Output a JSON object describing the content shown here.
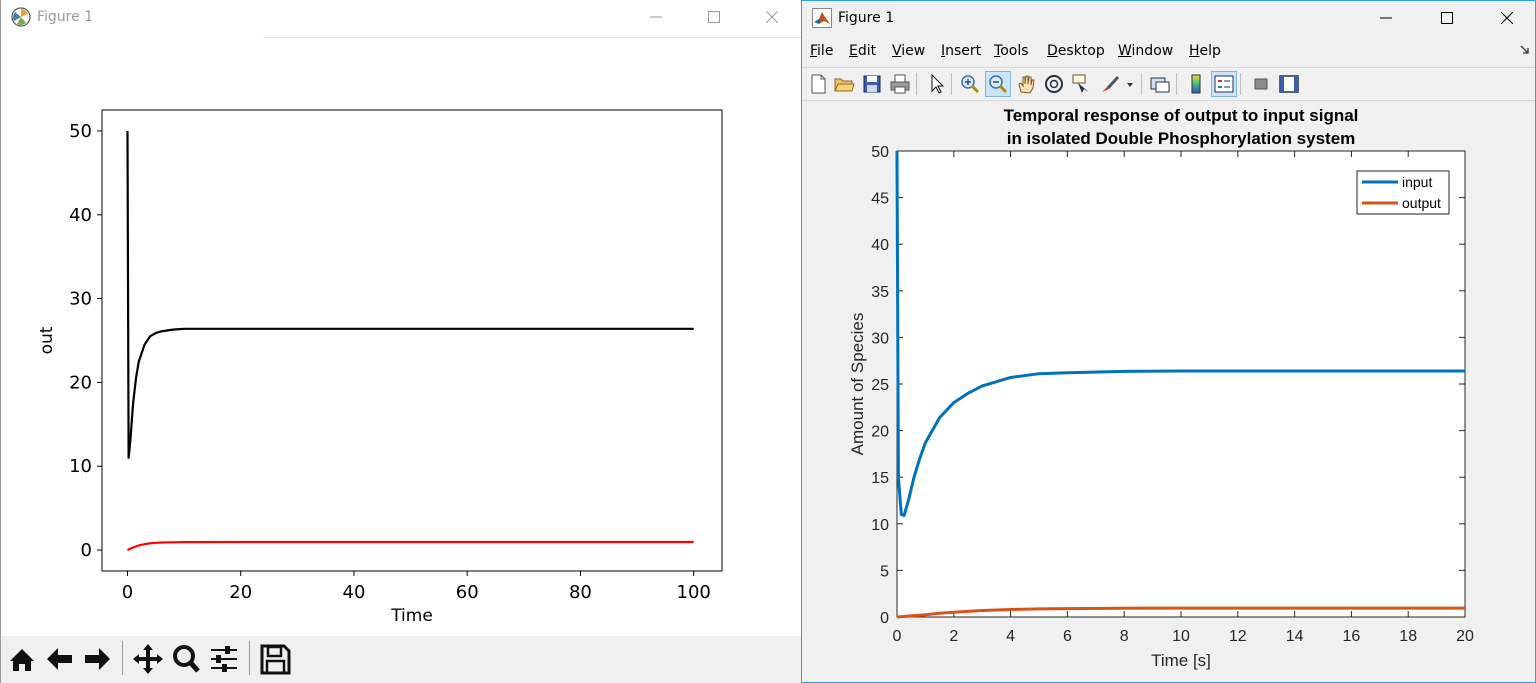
{
  "left_window": {
    "title": "Figure 1",
    "controls": {
      "minimize": "minimize",
      "maximize": "maximize",
      "close": "close"
    },
    "toolbar_icons": [
      "home-icon",
      "back-arrow-icon",
      "forward-arrow-icon",
      "pan-move-icon",
      "zoom-magnifier-icon",
      "configure-subplots-icon",
      "save-disk-icon"
    ]
  },
  "right_window": {
    "title": "Figure 1",
    "menu": [
      {
        "label": "File",
        "u": "F",
        "rest": "ile"
      },
      {
        "label": "Edit",
        "u": "E",
        "rest": "dit"
      },
      {
        "label": "View",
        "u": "V",
        "rest": "iew"
      },
      {
        "label": "Insert",
        "u": "I",
        "rest": "nsert"
      },
      {
        "label": "Tools",
        "u": "T",
        "rest": "ools"
      },
      {
        "label": "Desktop",
        "u": "D",
        "rest": "esktop"
      },
      {
        "label": "Window",
        "u": "W",
        "rest": "indow"
      },
      {
        "label": "Help",
        "u": "H",
        "rest": "elp"
      }
    ],
    "toolbar_icons": [
      "new-figure-icon",
      "open-file-icon",
      "save-icon",
      "print-icon",
      "edit-plot-arrow-icon",
      "zoom-in-icon",
      "zoom-out-icon",
      "pan-hand-icon",
      "rotate-3d-icon",
      "data-cursor-icon",
      "brush-icon",
      "link-plot-icon",
      "colorbar-icon",
      "legend-icon",
      "hide-plot-tools-icon",
      "show-plot-tools-icon"
    ]
  },
  "chart_data": [
    {
      "type": "line",
      "title": "",
      "xlabel": "Time",
      "ylabel": "out",
      "xlim": [
        -4.5,
        105
      ],
      "ylim": [
        -2.5,
        52.5
      ],
      "xticks": [
        0,
        20,
        40,
        60,
        80,
        100
      ],
      "yticks": [
        0,
        10,
        20,
        30,
        40,
        50
      ],
      "grid": false,
      "legend": "none",
      "series": [
        {
          "color": "#000000",
          "x": [
            0,
            0.2,
            0.5,
            1,
            1.5,
            2,
            3,
            4,
            5,
            6,
            8,
            10,
            15,
            20,
            40,
            60,
            80,
            100
          ],
          "y": [
            50,
            11,
            13,
            17.5,
            20.5,
            22.5,
            24.5,
            25.5,
            25.9,
            26.1,
            26.3,
            26.4,
            26.4,
            26.4,
            26.4,
            26.4,
            26.4,
            26.4
          ]
        },
        {
          "color": "#ff0000",
          "x": [
            0,
            1,
            2,
            3,
            4,
            5,
            6,
            8,
            10,
            20,
            40,
            60,
            80,
            100
          ],
          "y": [
            0,
            0.3,
            0.55,
            0.7,
            0.8,
            0.87,
            0.9,
            0.93,
            0.95,
            0.96,
            0.96,
            0.96,
            0.96,
            0.96
          ]
        }
      ]
    },
    {
      "type": "line",
      "title": "Temporal response of output to input signal in isolated Double Phosphorylation system",
      "title_lines": [
        "Temporal response of output to input signal",
        "in isolated Double Phosphorylation system"
      ],
      "xlabel": "Time [s]",
      "ylabel": "Amount of Species",
      "xlim": [
        0,
        20
      ],
      "ylim": [
        0,
        50
      ],
      "xticks": [
        0,
        2,
        4,
        6,
        8,
        10,
        12,
        14,
        16,
        18,
        20
      ],
      "yticks": [
        0,
        5,
        10,
        15,
        20,
        25,
        30,
        35,
        40,
        45,
        50
      ],
      "grid": false,
      "legend": "top-right",
      "series": [
        {
          "name": "input",
          "color": "#0072bd",
          "x": [
            0,
            0.05,
            0.15,
            0.25,
            0.4,
            0.6,
            0.8,
            1,
            1.5,
            2,
            2.5,
            3,
            4,
            5,
            6,
            8,
            10,
            12,
            15,
            20
          ],
          "y": [
            50,
            15,
            11,
            10.9,
            12.5,
            15,
            17,
            18.7,
            21.4,
            23,
            24,
            24.8,
            25.7,
            26.1,
            26.2,
            26.35,
            26.4,
            26.4,
            26.4,
            26.4
          ]
        },
        {
          "name": "output",
          "color": "#d95319",
          "x": [
            0,
            0.5,
            1,
            1.5,
            2,
            3,
            4,
            5,
            6,
            8,
            10,
            15,
            20
          ],
          "y": [
            0,
            0.12,
            0.25,
            0.4,
            0.52,
            0.7,
            0.8,
            0.87,
            0.9,
            0.94,
            0.95,
            0.96,
            0.96
          ]
        }
      ]
    }
  ]
}
